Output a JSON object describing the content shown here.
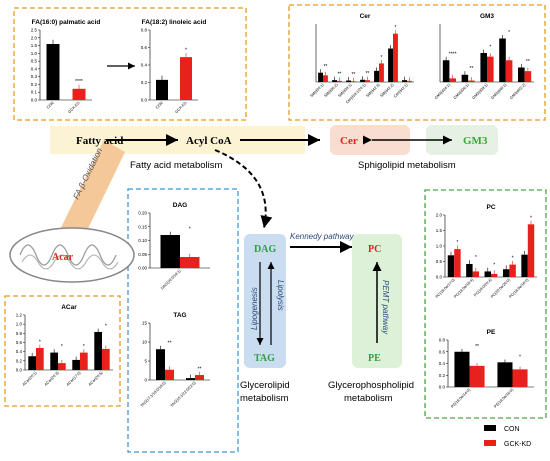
{
  "colors": {
    "con": "#000000",
    "gck": "#e8211c",
    "orange": "#e39a23",
    "blue": "#3c9bd0",
    "green": "#4aa64a",
    "red": "#e8211c",
    "gm3": "#3aa63a",
    "cerBg": "#f8ddd0",
    "gm3Bg": "#e4f1e3",
    "dagBg": "#c9dcf0",
    "pcBg": "#ddf1d8",
    "oxBg": "#f5c89a"
  },
  "pathway": {
    "fatty_acid": "Fatty acid",
    "acyl_coa": "Acyl CoA",
    "cer": "Cer",
    "gm3": "GM3",
    "fatty_acid_metabolism": "Fatty acid metabolism",
    "sphingolipid_metabolism": "Sphigolipid metabolism",
    "fa_oxidation": "FA β-Oxidation",
    "acar": "Acar",
    "dag": "DAG",
    "tag": "TAG",
    "lipogenesis": "Lipogenesis",
    "lipolysis": "Lipolysis",
    "kennedy": "Kennedy pathway",
    "pc": "PC",
    "pe": "PE",
    "pemt": "PEMT pathway",
    "glycerolipid_1": "Glycerolipid",
    "glycerolipid_2": "metabolism",
    "glycerophospho_1": "Glycerophospholipid",
    "glycerophospho_2": "metabolism"
  },
  "legend": {
    "con": "CON",
    "gck": "GCK-KD"
  },
  "chart_data": [
    {
      "id": "fa16",
      "type": "bar",
      "title": "FA(16:0) palmatic  acid",
      "categories": [
        "CON",
        "GCK-KD"
      ],
      "values": [
        2.0,
        0.4
      ],
      "ylim": [
        0,
        2.5
      ],
      "ticks": [
        "0.0",
        "0.1",
        "0.2",
        "0.3",
        "0.4",
        "0.5",
        "1.0",
        "1.5",
        "2.0",
        "2.5"
      ],
      "sig": [
        "",
        "****"
      ]
    },
    {
      "id": "fa18",
      "type": "bar",
      "title": "FA(18:2) linoleic acid",
      "categories": [
        "CON",
        "GCK-KD"
      ],
      "values": [
        0.23,
        0.49
      ],
      "ylim": [
        0,
        0.8
      ],
      "ticks": [
        "0.0",
        "0.2",
        "0.4",
        "0.6",
        "0.8"
      ],
      "sig": [
        "",
        "*"
      ]
    },
    {
      "id": "cer",
      "type": "bar",
      "title": "Cer",
      "categories": [
        "SM(d34:1)",
        "SM(d36:2)",
        "SM(d38:1)",
        "Cer(d18:1/24:1)",
        "SM(d42:3)",
        "SM(d42:2)",
        "Cer(d42:1)"
      ],
      "series": [
        {
          "name": "CON",
          "values": [
            0.25,
            0.05,
            0.04,
            0.06,
            0.3,
            0.9,
            0.05
          ]
        },
        {
          "name": "GCK-KD",
          "values": [
            0.18,
            0.03,
            0.02,
            0.05,
            0.5,
            1.3,
            0.03
          ]
        }
      ],
      "sig": [
        "**",
        "**",
        "**",
        "**",
        "*",
        "*",
        ""
      ]
    },
    {
      "id": "gm3",
      "type": "bar",
      "title": "GM3",
      "categories": [
        "GM3(d34:1)",
        "GM3(d36:1)",
        "GM3(d38:1)",
        "GM3(d40:1)",
        "GM3(d42:2)"
      ],
      "series": [
        {
          "name": "CON",
          "values": [
            0.3,
            0.1,
            0.4,
            0.6,
            0.2
          ]
        },
        {
          "name": "GCK-KD",
          "values": [
            0.05,
            0.02,
            0.35,
            0.3,
            0.15
          ]
        }
      ],
      "ylim": [
        0,
        0.8
      ],
      "sig": [
        "****",
        "**",
        "*",
        "*",
        "**"
      ]
    },
    {
      "id": "dag",
      "type": "bar",
      "title": "DAG",
      "categories": [
        "DAG(16:0/18:1)"
      ],
      "series": [
        {
          "name": "CON",
          "values": [
            0.12
          ]
        },
        {
          "name": "GCK-KD",
          "values": [
            0.04
          ]
        }
      ],
      "ylim": [
        0,
        0.2
      ],
      "ticks": [
        "0.00",
        "0.05",
        "0.10",
        "0.15",
        "0.20"
      ],
      "sig": [
        "*"
      ]
    },
    {
      "id": "tag",
      "type": "bar",
      "title": "TAG",
      "categories": [
        "TAG(17:1/18:0/18:0)",
        "TAG(15:1/22:0/22:0)"
      ],
      "series": [
        {
          "name": "CON",
          "values": [
            8.1,
            0.5
          ]
        },
        {
          "name": "GCK-KD",
          "values": [
            2.7,
            1.3
          ]
        }
      ],
      "ylim": [
        0,
        15
      ],
      "ticks": [
        "0",
        "5",
        "10",
        "15"
      ],
      "sig": [
        "**",
        "**"
      ]
    },
    {
      "id": "acar",
      "type": "bar",
      "title": "ACar",
      "categories": [
        "ACar(20:1)",
        "ACar(20:3)",
        "ACar(17:0)",
        "ACar(20:5)"
      ],
      "series": [
        {
          "name": "CON",
          "values": [
            0.3,
            0.38,
            0.22,
            0.83
          ]
        },
        {
          "name": "GCK-KD",
          "values": [
            0.48,
            0.15,
            0.38,
            0.46
          ]
        }
      ],
      "ylim": [
        0,
        1.2
      ],
      "ticks": [
        "0.0",
        "0.2",
        "0.4",
        "0.6",
        "0.8",
        "1.0",
        "1.2"
      ],
      "sig": [
        "*",
        "*",
        "*",
        "*"
      ]
    },
    {
      "id": "pc",
      "type": "bar",
      "title": "PC",
      "categories": [
        "PC(18:0e/17:0)",
        "PC(18:0e/18:4)",
        "PC(18:0/20:4)",
        "PC(20:0e/20:0)",
        "PC(18:0e/16:0)"
      ],
      "series": [
        {
          "name": "CON",
          "values": [
            0.7,
            0.42,
            0.18,
            0.25,
            0.72
          ]
        },
        {
          "name": "GCK-KD",
          "values": [
            0.9,
            0.18,
            0.1,
            0.4,
            1.7
          ]
        }
      ],
      "ylim": [
        0,
        2.0
      ],
      "ticks": [
        "0.0",
        "0.5",
        "1.0",
        "1.5",
        "2.0"
      ],
      "sig": [
        "*",
        "*",
        "*",
        "*",
        "*"
      ]
    },
    {
      "id": "pe",
      "type": "bar",
      "title": "PE",
      "categories": [
        "PE(18:0e/14:0)",
        "PE(18:0e/16:0)"
      ],
      "series": [
        {
          "name": "CON",
          "values": [
            0.6,
            0.42
          ]
        },
        {
          "name": "GCK-KD",
          "values": [
            0.36,
            0.3
          ]
        }
      ],
      "ylim": [
        0,
        0.8
      ],
      "ticks": [
        "0.0",
        "0.2",
        "0.4",
        "0.6",
        "0.8"
      ],
      "sig": [
        "**",
        "*"
      ]
    }
  ]
}
